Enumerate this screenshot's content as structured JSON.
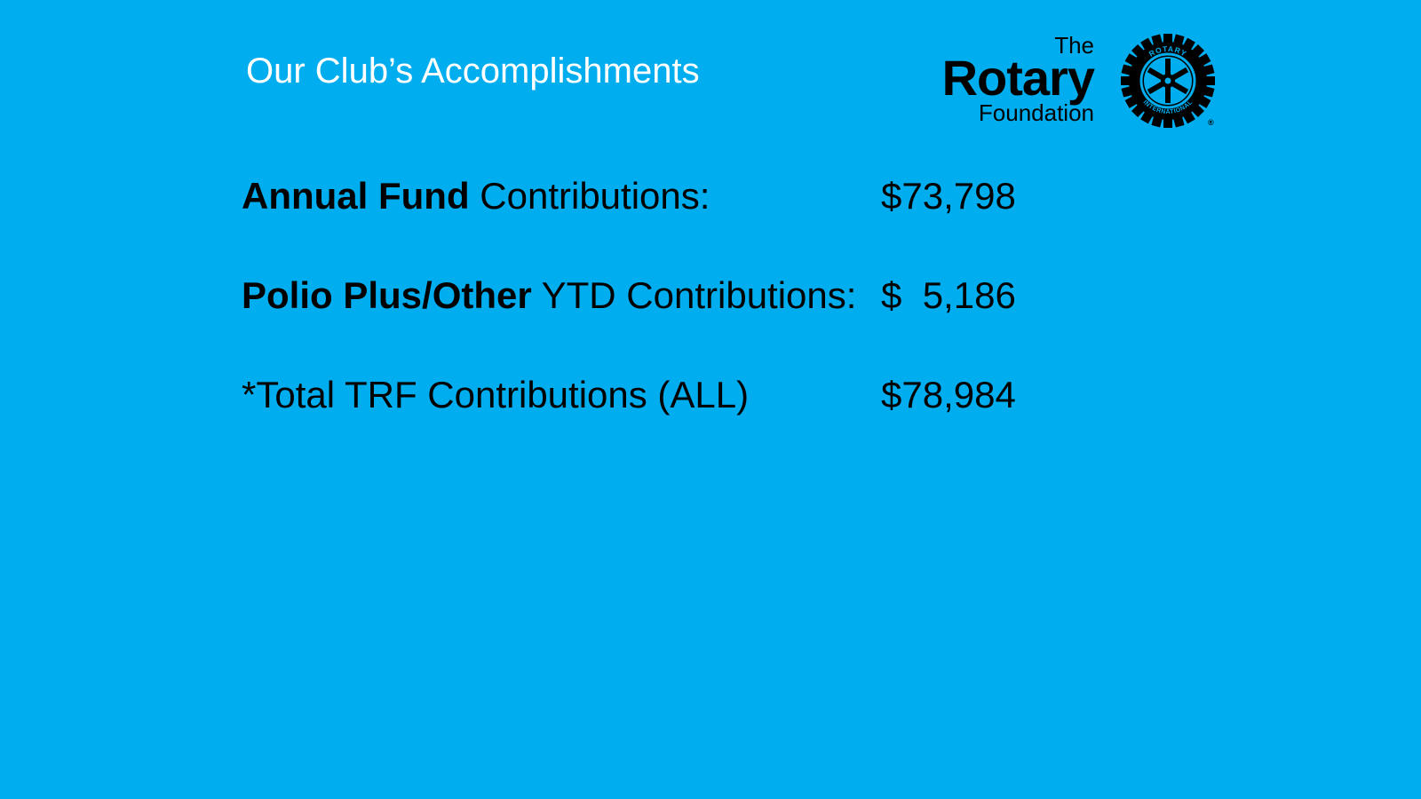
{
  "colors": {
    "background": "#00AEEF",
    "title_text": "#FFFFFF",
    "body_text": "#000000"
  },
  "title": "Our Club’s Accomplishments",
  "logo": {
    "the": "The",
    "rotary": "Rotary",
    "foundation": "Foundation",
    "wheel_icon": "rotary-wheel-icon",
    "wheel_text_top": "ROTARY",
    "wheel_text_bottom": "INTERNATIONAL",
    "registered": "®"
  },
  "rows": [
    {
      "label_bold": "Annual Fund",
      "label_rest": " Contributions:",
      "value": "$73,798"
    },
    {
      "label_bold": "Polio Plus/Other",
      "label_rest": " YTD Contributions:",
      "value": "$  5,186"
    },
    {
      "label_bold": "",
      "label_rest": "*Total TRF Contributions (ALL)",
      "value": "$78,984"
    }
  ]
}
